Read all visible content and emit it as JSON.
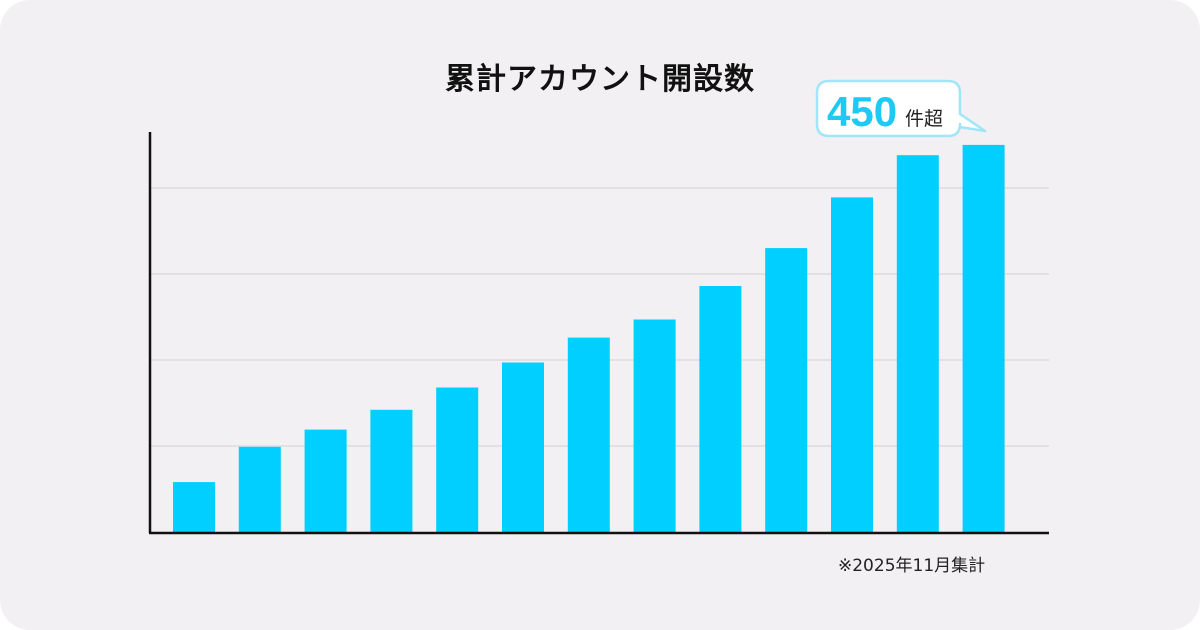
{
  "chart_data": {
    "type": "bar",
    "title": "累計アカウント開設数",
    "categories": [
      "",
      "",
      "",
      "",
      "",
      "",
      "",
      "",
      "",
      "",
      "",
      "",
      ""
    ],
    "values": [
      58,
      99,
      119,
      142,
      168,
      197,
      226,
      247,
      286,
      330,
      389,
      438,
      450
    ],
    "ylim": [
      0,
      465
    ],
    "grid": true,
    "bar_color": "#00cfff",
    "axis_color": "#111111",
    "grid_color": "#dcdadd",
    "annotation": {
      "number": "450",
      "suffix": "件超",
      "text_color": "#1ec9f4",
      "border_color": "#9ee6f8"
    },
    "footnote": "※2025年11月集計"
  }
}
